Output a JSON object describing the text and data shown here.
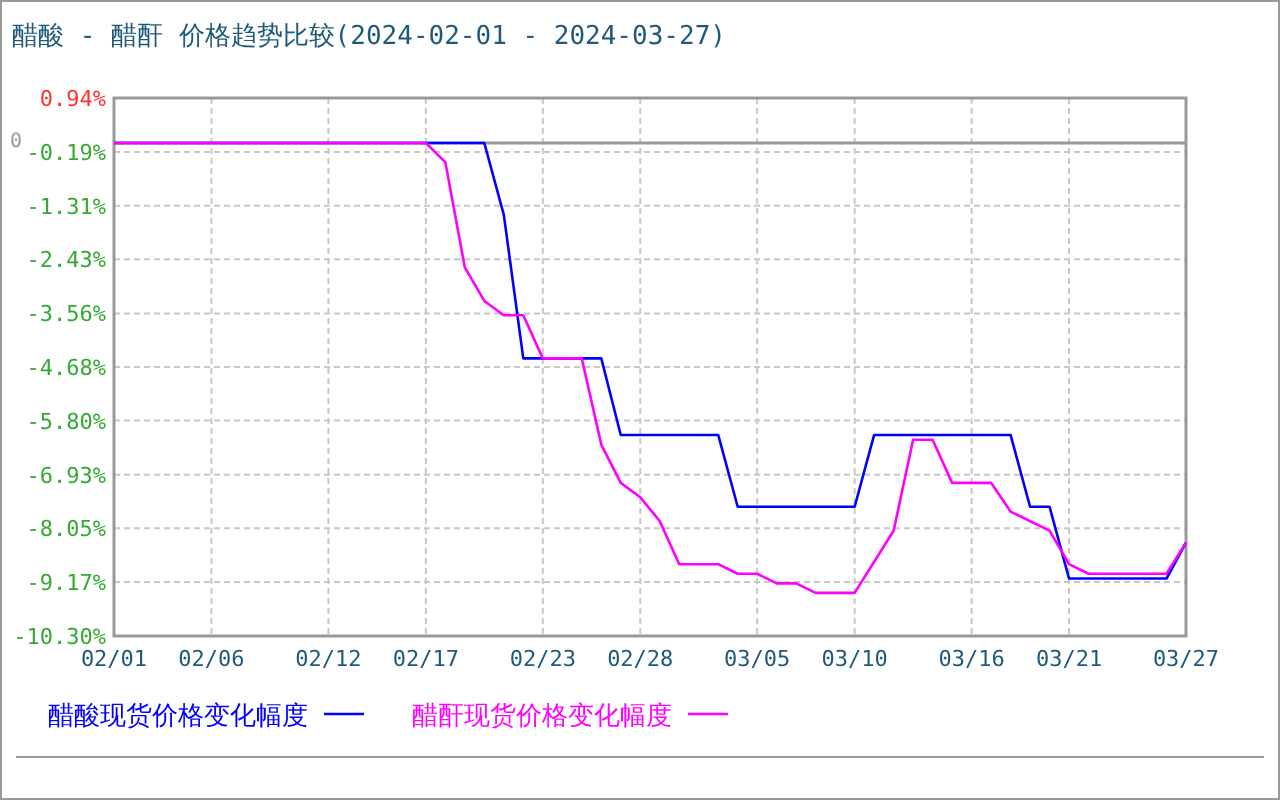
{
  "chart_data": {
    "type": "line",
    "title": "醋酸 - 醋酐 价格趋势比较(2024-02-01 - 2024-03-27)",
    "series": [
      {
        "name": "醋酸现货价格变化幅度",
        "color": "#0000ff",
        "x": [
          "2024-02-01",
          "2024-02-20",
          "2024-02-21",
          "2024-02-22",
          "2024-02-26",
          "2024-02-27",
          "2024-03-03",
          "2024-03-04",
          "2024-03-10",
          "2024-03-11",
          "2024-03-18",
          "2024-03-19",
          "2024-03-20",
          "2024-03-21",
          "2024-03-26",
          "2024-03-27"
        ],
        "values": [
          0,
          0,
          -1.5,
          -4.5,
          -4.5,
          -6.1,
          -6.1,
          -7.6,
          -7.6,
          -6.1,
          -6.1,
          -7.6,
          -7.6,
          -9.1,
          -9.1,
          -8.35
        ]
      },
      {
        "name": "醋酐现货价格变化幅度",
        "color": "#ff00ff",
        "x": [
          "2024-02-01",
          "2024-02-17",
          "2024-02-18",
          "2024-02-19",
          "2024-02-20",
          "2024-02-21",
          "2024-02-22",
          "2024-02-23",
          "2024-02-25",
          "2024-02-26",
          "2024-02-27",
          "2024-02-28",
          "2024-02-29",
          "2024-03-01",
          "2024-03-03",
          "2024-03-04",
          "2024-03-05",
          "2024-03-06",
          "2024-03-07",
          "2024-03-08",
          "2024-03-10",
          "2024-03-12",
          "2024-03-13",
          "2024-03-14",
          "2024-03-15",
          "2024-03-17",
          "2024-03-18",
          "2024-03-20",
          "2024-03-21",
          "2024-03-22",
          "2024-03-26",
          "2024-03-27"
        ],
        "values": [
          0,
          0,
          -0.4,
          -2.6,
          -3.3,
          -3.6,
          -3.6,
          -4.5,
          -4.5,
          -6.3,
          -7.1,
          -7.4,
          -7.9,
          -8.8,
          -8.8,
          -9.0,
          -9.0,
          -9.2,
          -9.2,
          -9.4,
          -9.4,
          -8.1,
          -6.2,
          -6.2,
          -7.1,
          -7.1,
          -7.7,
          -8.1,
          -8.8,
          -9.0,
          -9.0,
          -8.35
        ]
      }
    ],
    "xlim": [
      "2024-02-01",
      "2024-03-27"
    ],
    "xticks": [
      {
        "value": "2024-02-01",
        "label": "02/01"
      },
      {
        "value": "2024-02-06",
        "label": "02/06"
      },
      {
        "value": "2024-02-12",
        "label": "02/12"
      },
      {
        "value": "2024-02-17",
        "label": "02/17"
      },
      {
        "value": "2024-02-23",
        "label": "02/23"
      },
      {
        "value": "2024-02-28",
        "label": "02/28"
      },
      {
        "value": "2024-03-05",
        "label": "03/05"
      },
      {
        "value": "2024-03-10",
        "label": "03/10"
      },
      {
        "value": "2024-03-16",
        "label": "03/16"
      },
      {
        "value": "2024-03-21",
        "label": "03/21"
      },
      {
        "value": "2024-03-27",
        "label": "03/27"
      }
    ],
    "ylim": [
      -10.3,
      0.94
    ],
    "yticks": [
      {
        "value": 0.94,
        "label": "0.94%"
      },
      {
        "value": -0.19,
        "label": "-0.19%"
      },
      {
        "value": -1.31,
        "label": "-1.31%"
      },
      {
        "value": -2.43,
        "label": "-2.43%"
      },
      {
        "value": -3.56,
        "label": "-3.56%"
      },
      {
        "value": -4.68,
        "label": "-4.68%"
      },
      {
        "value": -5.8,
        "label": "-5.80%"
      },
      {
        "value": -6.93,
        "label": "-6.93%"
      },
      {
        "value": -8.05,
        "label": "-8.05%"
      },
      {
        "value": -9.17,
        "label": "-9.17%"
      },
      {
        "value": -10.3,
        "label": "-10.30%"
      }
    ],
    "ref_lines": [
      {
        "axis": "y",
        "value": 0,
        "label": "0",
        "color": "#999999"
      }
    ],
    "grid": true,
    "legend": "bottom",
    "marker": "none",
    "line_style": "solid"
  }
}
